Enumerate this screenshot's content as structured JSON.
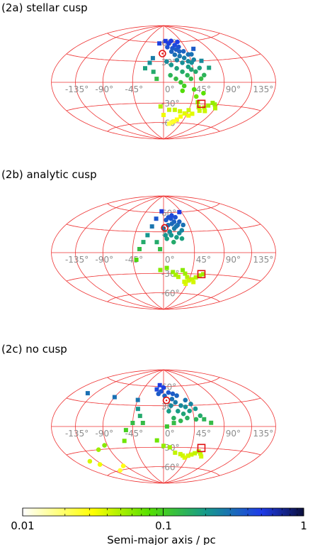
{
  "chart_data": [
    {
      "type": "scatter",
      "projection": "hammer-aitoff",
      "title": "(2a) stellar cusp",
      "lon_ticks": [
        "-135°",
        "-90°",
        "-45°",
        "0°",
        "45°",
        "90°",
        "135°"
      ],
      "lat_ticks": [
        "60°",
        "30°",
        "-30°",
        "-60°"
      ],
      "series": [
        {
          "marker": "circle",
          "points": [
            [
              8,
              52
            ],
            [
              12,
              58
            ],
            [
              18,
              50
            ],
            [
              25,
              48
            ],
            [
              30,
              45
            ],
            [
              28,
              38
            ],
            [
              35,
              35
            ],
            [
              40,
              30
            ],
            [
              45,
              28
            ],
            [
              20,
              40
            ],
            [
              22,
              32
            ],
            [
              30,
              28
            ],
            [
              38,
              22
            ],
            [
              42,
              18
            ],
            [
              48,
              15
            ],
            [
              15,
              45
            ],
            [
              25,
              55
            ],
            [
              32,
              52
            ],
            [
              38,
              45
            ],
            [
              44,
              40
            ],
            [
              50,
              32
            ],
            [
              20,
              20
            ],
            [
              28,
              15
            ],
            [
              35,
              10
            ],
            [
              40,
              5
            ],
            [
              10,
              10
            ],
            [
              18,
              5
            ],
            [
              25,
              0
            ],
            [
              30,
              -5
            ],
            [
              45,
              -10
            ],
            [
              50,
              -20
            ],
            [
              55,
              5
            ],
            [
              60,
              10
            ],
            [
              5,
              30
            ],
            [
              12,
              25
            ],
            [
              50,
              40
            ],
            [
              55,
              20
            ],
            [
              35,
              60
            ],
            [
              20,
              62
            ],
            [
              28,
              -12
            ],
            [
              60,
              -15
            ]
          ]
        },
        {
          "marker": "square",
          "points": [
            [
              -10,
              58
            ],
            [
              -18,
              35
            ],
            [
              -22,
              28
            ],
            [
              -28,
              20
            ],
            [
              -15,
              15
            ],
            [
              -10,
              5
            ],
            [
              5,
              62
            ],
            [
              60,
              48
            ],
            [
              62,
              30
            ],
            [
              70,
              20
            ],
            [
              55,
              -28
            ],
            [
              60,
              -35
            ],
            [
              65,
              -40
            ],
            [
              70,
              -35
            ],
            [
              75,
              -32
            ],
            [
              45,
              -40
            ],
            [
              40,
              -45
            ],
            [
              35,
              -50
            ],
            [
              30,
              -55
            ],
            [
              25,
              -58
            ],
            [
              20,
              -60
            ],
            [
              15,
              -62
            ],
            [
              50,
              -48
            ],
            [
              55,
              -45
            ],
            [
              75,
              -40
            ],
            [
              20,
              -40
            ],
            [
              30,
              -42
            ],
            [
              10,
              -40
            ],
            [
              -5,
              -35
            ],
            [
              0,
              -48
            ],
            [
              85,
              -30
            ],
            [
              80,
              -28
            ],
            [
              90,
              -35
            ]
          ]
        }
      ],
      "markers": {
        "open_circle": [
          -2,
          42
        ],
        "open_square": [
          62,
          -30
        ]
      }
    },
    {
      "type": "scatter",
      "projection": "hammer-aitoff",
      "title": "(2b) analytic cusp",
      "lon_ticks": [
        "-135°",
        "-90°",
        "-45°",
        "0°",
        "45°",
        "90°",
        "135°"
      ],
      "lat_ticks": [
        "60°",
        "30°",
        "-30°",
        "-60°"
      ],
      "series": [
        {
          "marker": "circle",
          "points": [
            [
              5,
              48
            ],
            [
              10,
              52
            ],
            [
              15,
              50
            ],
            [
              20,
              45
            ],
            [
              25,
              40
            ],
            [
              18,
              35
            ],
            [
              10,
              30
            ],
            [
              12,
              25
            ],
            [
              20,
              22
            ],
            [
              25,
              28
            ],
            [
              30,
              32
            ],
            [
              8,
              40
            ],
            [
              15,
              42
            ],
            [
              22,
              38
            ],
            [
              28,
              20
            ],
            [
              15,
              15
            ],
            [
              5,
              20
            ],
            [
              30,
              45
            ],
            [
              35,
              40
            ],
            [
              0,
              35
            ],
            [
              3,
              25
            ],
            [
              18,
              55
            ],
            [
              25,
              52
            ]
          ]
        },
        {
          "marker": "square",
          "points": [
            [
              -5,
              62
            ],
            [
              -15,
              50
            ],
            [
              -20,
              38
            ],
            [
              -25,
              25
            ],
            [
              -30,
              15
            ],
            [
              -35,
              5
            ],
            [
              -40,
              -10
            ],
            [
              -10,
              15
            ],
            [
              -5,
              5
            ],
            [
              40,
              60
            ],
            [
              30,
              -25
            ],
            [
              35,
              -30
            ],
            [
              40,
              -35
            ],
            [
              45,
              -40
            ],
            [
              50,
              -38
            ],
            [
              55,
              -35
            ],
            [
              60,
              -32
            ],
            [
              65,
              -30
            ],
            [
              42,
              -45
            ],
            [
              38,
              -42
            ],
            [
              55,
              -42
            ],
            [
              -5,
              -25
            ],
            [
              5,
              -22
            ],
            [
              15,
              -28
            ],
            [
              20,
              -32
            ],
            [
              25,
              -35
            ]
          ]
        }
      ],
      "markers": {
        "open_circle": [
          2,
          36
        ],
        "open_square": [
          62,
          -30
        ]
      }
    },
    {
      "type": "scatter",
      "projection": "hammer-aitoff",
      "title": "(2c) no cusp",
      "lon_ticks": [
        "-135°",
        "-90°",
        "-45°",
        "0°",
        "45°",
        "90°",
        "135°"
      ],
      "lat_ticks": [
        "60°",
        "30°",
        "-30°",
        "-60°"
      ],
      "series": [
        {
          "marker": "circle",
          "points": [
            [
              -5,
              52
            ],
            [
              0,
              58
            ],
            [
              -10,
              48
            ],
            [
              2,
              45
            ],
            [
              10,
              50
            ],
            [
              18,
              48
            ],
            [
              25,
              45
            ],
            [
              15,
              40
            ],
            [
              20,
              35
            ],
            [
              28,
              30
            ],
            [
              35,
              28
            ],
            [
              40,
              22
            ],
            [
              30,
              18
            ],
            [
              22,
              22
            ],
            [
              12,
              30
            ],
            [
              8,
              22
            ],
            [
              38,
              38
            ],
            [
              45,
              32
            ],
            [
              50,
              25
            ],
            [
              35,
              12
            ],
            [
              25,
              8
            ],
            [
              15,
              12
            ],
            [
              48,
              10
            ],
            [
              55,
              15
            ],
            [
              -140,
              -48
            ],
            [
              -150,
              -42
            ],
            [
              -110,
              -30
            ],
            [
              -95,
              -25
            ],
            [
              -95,
              -55
            ],
            [
              -120,
              -60
            ]
          ]
        },
        {
          "marker": "square",
          "points": [
            [
              -150,
              40
            ],
            [
              -90,
              40
            ],
            [
              -45,
              38
            ],
            [
              -40,
              25
            ],
            [
              -35,
              15
            ],
            [
              -30,
              5
            ],
            [
              -45,
              5
            ],
            [
              -55,
              -5
            ],
            [
              -60,
              -20
            ],
            [
              -15,
              55
            ],
            [
              -10,
              62
            ],
            [
              50,
              -40
            ],
            [
              55,
              -38
            ],
            [
              60,
              -35
            ],
            [
              65,
              -38
            ],
            [
              70,
              -42
            ],
            [
              45,
              -42
            ],
            [
              40,
              -45
            ],
            [
              35,
              -42
            ],
            [
              30,
              -40
            ],
            [
              20,
              -38
            ],
            [
              10,
              -30
            ],
            [
              0,
              -28
            ],
            [
              -10,
              -20
            ],
            [
              15,
              5
            ],
            [
              5,
              0
            ],
            [
              60,
              10
            ],
            [
              70,
              5
            ]
          ]
        }
      ],
      "markers": {
        "open_circle": [
          5,
          38
        ],
        "open_square": [
          62,
          -30
        ]
      }
    }
  ],
  "colorbar": {
    "label": "Semi-major axis / pc",
    "tick_labels": [
      "0.01",
      "0.1",
      "1"
    ],
    "scale": "log",
    "range": [
      0.01,
      1
    ],
    "colors": [
      "#ffffff",
      "#ffff00",
      "#55e000",
      "#169a8a",
      "#1f3be8",
      "#0b0f3c"
    ]
  },
  "grid_color": "#ee3333"
}
